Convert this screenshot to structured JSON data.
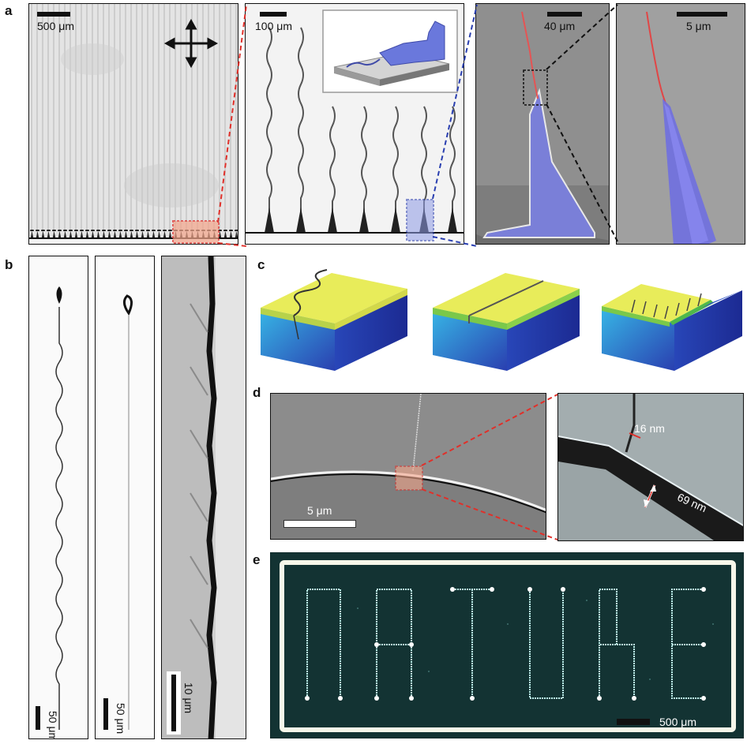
{
  "panels": {
    "a": {
      "letter": "a",
      "scalebars": [
        "500 μm",
        "100 μm",
        "40 μm",
        "5 μm"
      ]
    },
    "b": {
      "letter": "b",
      "scalebars": [
        "50 μm",
        "50 μm",
        "10 μm"
      ]
    },
    "c": {
      "letter": "c"
    },
    "d": {
      "letter": "d",
      "scalebar": "5 μm",
      "measure_small": "16 nm",
      "measure_large": "69 nm"
    },
    "e": {
      "letter": "e",
      "word": "NATURE",
      "scalebar": "500 μm"
    }
  },
  "colors": {
    "red_dashed": "#e0302a",
    "blue_dashed": "#2a3fb0",
    "film_yellow": "#e8ec5a",
    "substrate_blue": "#2f55c8",
    "fluor_line": "#bff3ee"
  }
}
